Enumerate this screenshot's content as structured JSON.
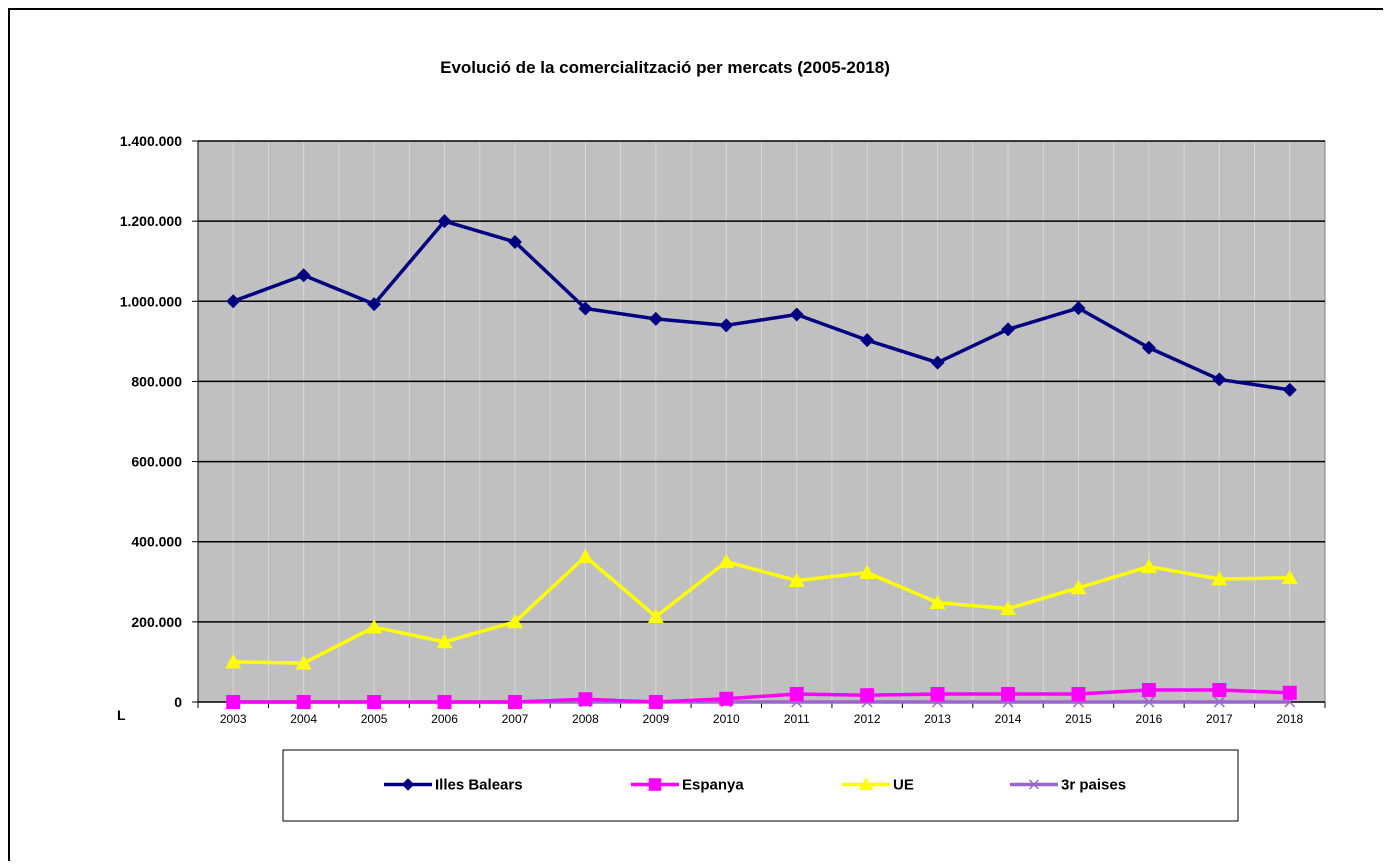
{
  "chart_data": {
    "type": "line",
    "title": "Evolució de la comercialització per mercats (2005-2018)",
    "x": [
      "2003",
      "2004",
      "2005",
      "2006",
      "2007",
      "2008",
      "2009",
      "2010",
      "2011",
      "2012",
      "2013",
      "2014",
      "2015",
      "2016",
      "2017",
      "2018"
    ],
    "y_tick_labels": [
      "0",
      "200.000",
      "400.000",
      "600.000",
      "800.000",
      "1.000.000",
      "1.200.000",
      "1.400.000"
    ],
    "y_unit_label": "L",
    "ylim": [
      0,
      1400000
    ],
    "grid": true,
    "legend_position": "bottom",
    "series": [
      {
        "name": "Illes Balears",
        "color": "#000080",
        "marker": "diamond",
        "values": [
          1000000,
          1065000,
          993000,
          1200000,
          1148000,
          982000,
          956000,
          940000,
          967000,
          903000,
          847000,
          930000,
          983000,
          884000,
          805000,
          779000
        ]
      },
      {
        "name": "Espanya",
        "color": "#ff00ff",
        "marker": "square",
        "values": [
          0,
          0,
          0,
          0,
          0,
          7000,
          0,
          8000,
          20000,
          17000,
          20000,
          20000,
          20000,
          30000,
          30000,
          23000
        ]
      },
      {
        "name": "UE",
        "color": "#ffff00",
        "marker": "triangle",
        "values": [
          100000,
          97000,
          187000,
          150000,
          200000,
          363000,
          213000,
          350000,
          303000,
          323000,
          248000,
          233000,
          285000,
          338000,
          307000,
          310000
        ]
      },
      {
        "name": "3r paises",
        "color": "#9966cc",
        "marker": "x",
        "values": [
          0,
          0,
          0,
          0,
          0,
          0,
          0,
          0,
          0,
          0,
          0,
          0,
          0,
          0,
          0,
          0
        ]
      }
    ]
  }
}
